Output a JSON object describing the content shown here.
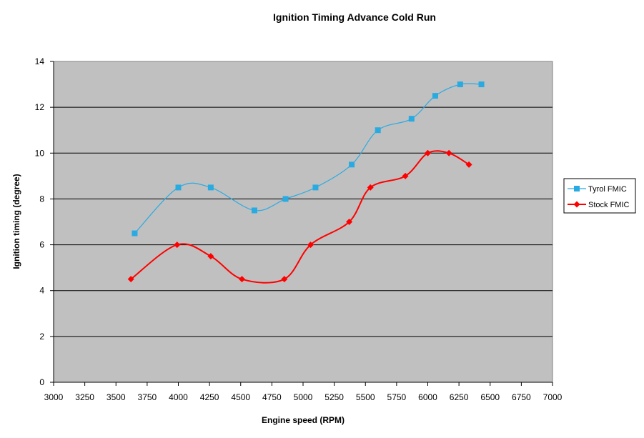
{
  "chart_data": {
    "type": "line",
    "title": "Ignition Timing Advance Cold Run",
    "xlabel": "Engine speed (RPM)",
    "ylabel": "Ignition timing (degree)",
    "xlim": [
      3000,
      7000
    ],
    "ylim": [
      0,
      14
    ],
    "xticks": [
      3000,
      3250,
      3500,
      3750,
      4000,
      4250,
      4500,
      4750,
      5000,
      5250,
      5500,
      5750,
      6000,
      6250,
      6500,
      6750,
      7000
    ],
    "yticks": [
      0,
      2,
      4,
      6,
      8,
      10,
      12,
      14
    ],
    "grid": "horizontal",
    "legend_position": "right",
    "series": [
      {
        "name": "Tyrol FMIC",
        "color": "#29ABE2",
        "marker": "square",
        "x": [
          3650,
          4000,
          4260,
          4610,
          4860,
          5100,
          5390,
          5600,
          5870,
          6060,
          6260,
          6430
        ],
        "y": [
          6.5,
          8.5,
          8.5,
          7.5,
          8.0,
          8.5,
          9.5,
          11.0,
          11.5,
          12.5,
          13.0,
          13.0
        ]
      },
      {
        "name": "Stock FMIC",
        "color": "#FF0000",
        "marker": "diamond",
        "x": [
          3620,
          3990,
          4260,
          4510,
          4850,
          5060,
          5370,
          5540,
          5820,
          6000,
          6170,
          6330
        ],
        "y": [
          4.5,
          6.0,
          5.5,
          4.5,
          4.5,
          6.0,
          7.0,
          8.5,
          9.0,
          10.0,
          10.0,
          9.5
        ]
      }
    ]
  }
}
